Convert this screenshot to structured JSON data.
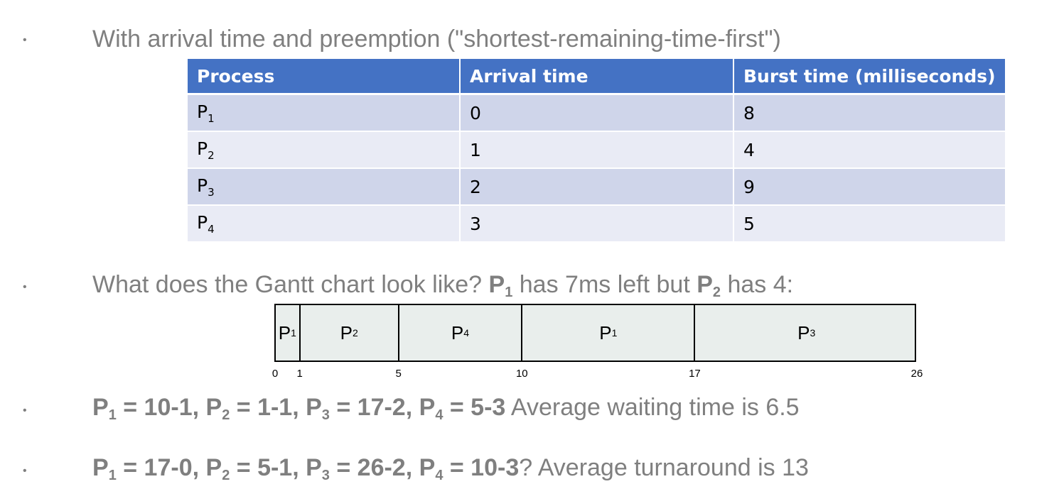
{
  "bullets": {
    "b1": "With arrival time and preemption (\"shortest-remaining-time-first\")",
    "b2": {
      "pre": "What does the Gantt chart look like? ",
      "p1": "P",
      "p1_sub": "1",
      "mid": " has 7ms left but ",
      "p2": "P",
      "p2_sub": "2",
      "post": " has 4:"
    },
    "b3": {
      "bold": [
        {
          "p": "P",
          "sub": "1",
          "eq": " = 10-1, "
        },
        {
          "p": "P",
          "sub": "2",
          "eq": " = 1-1, "
        },
        {
          "p": "P",
          "sub": "3",
          "eq": " = 17-2, "
        },
        {
          "p": "P",
          "sub": "4",
          "eq": " = 5-3"
        }
      ],
      "tail": " Average waiting time is 6.5"
    },
    "b4": {
      "bold": [
        {
          "p": "P",
          "sub": "1",
          "eq": " = 17-0, "
        },
        {
          "p": "P",
          "sub": "2",
          "eq": " = 5-1, "
        },
        {
          "p": "P",
          "sub": "3",
          "eq": " = 26-2, "
        },
        {
          "p": "P",
          "sub": "4",
          "eq": " = 10-3"
        }
      ],
      "tail": "? Average turnaround is 13"
    }
  },
  "table": {
    "headers": [
      "Process",
      "Arrival time",
      "Burst time (milliseconds)"
    ],
    "rows": [
      {
        "p": "P",
        "sub": "1",
        "arrival": "0",
        "burst": "8"
      },
      {
        "p": "P",
        "sub": "2",
        "arrival": "1",
        "burst": "4"
      },
      {
        "p": "P",
        "sub": "3",
        "arrival": "2",
        "burst": "9"
      },
      {
        "p": "P",
        "sub": "4",
        "arrival": "3",
        "burst": "5"
      }
    ]
  },
  "gantt": {
    "start": 0,
    "end": 26,
    "segments": [
      {
        "p": "P",
        "sub": "1",
        "from": 0,
        "to": 1
      },
      {
        "p": "P",
        "sub": "2",
        "from": 1,
        "to": 5
      },
      {
        "p": "P",
        "sub": "4",
        "from": 5,
        "to": 10
      },
      {
        "p": "P",
        "sub": "1",
        "from": 10,
        "to": 17
      },
      {
        "p": "P",
        "sub": "3",
        "from": 17,
        "to": 26
      }
    ],
    "ticks": [
      "0",
      "1",
      "5",
      "10",
      "17",
      "26"
    ]
  }
}
